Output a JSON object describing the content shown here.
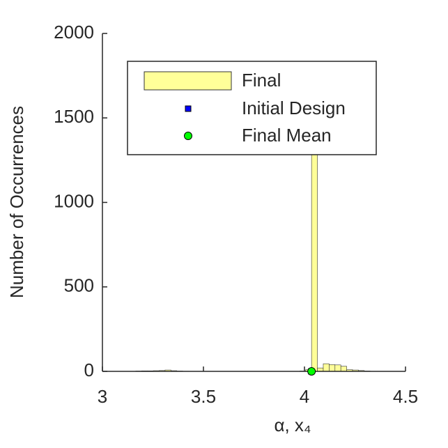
{
  "chart_data": {
    "type": "histogram",
    "xlabel": "α, x₄",
    "ylabel": "Number of Occurrences",
    "bins": [
      3.165,
      3.194,
      3.223,
      3.252,
      3.281,
      3.31,
      3.339,
      3.368,
      3.397,
      3.426,
      3.455,
      3.484,
      3.513,
      3.542,
      3.571,
      3.6,
      3.629,
      3.658,
      3.687,
      3.716,
      3.745,
      3.774,
      3.803,
      3.832,
      3.861,
      3.89,
      3.919,
      3.948,
      3.977,
      4.006,
      4.035,
      4.064,
      4.093,
      4.122,
      4.151,
      4.18,
      4.209,
      4.238,
      4.267,
      4.296,
      4.325
    ],
    "series": [
      {
        "name": "Final",
        "color": "#ffff99",
        "values": [
          2,
          3,
          3,
          4,
          5,
          8,
          4,
          2,
          1,
          0,
          0,
          0,
          0,
          0,
          0,
          0,
          0,
          0,
          0,
          0,
          0,
          0,
          0,
          0,
          0,
          0,
          0,
          0,
          2,
          10,
          1700,
          20,
          45,
          40,
          38,
          30,
          10,
          8,
          5,
          2
        ]
      },
      {
        "name": "Initial Design",
        "color": "#0000ff",
        "x": [
          4.034
        ],
        "values": [
          0
        ]
      },
      {
        "name": "Final Mean",
        "color": "#00ff00",
        "x": [
          4.035
        ],
        "values": [
          0
        ]
      }
    ],
    "xlim": [
      3,
      4.5
    ],
    "xticks": [
      3,
      3.5,
      4,
      4.5
    ],
    "ylim": [
      0,
      2000
    ],
    "yticks": [
      0,
      500,
      1000,
      1500,
      2000
    ],
    "legend": "top-right"
  }
}
